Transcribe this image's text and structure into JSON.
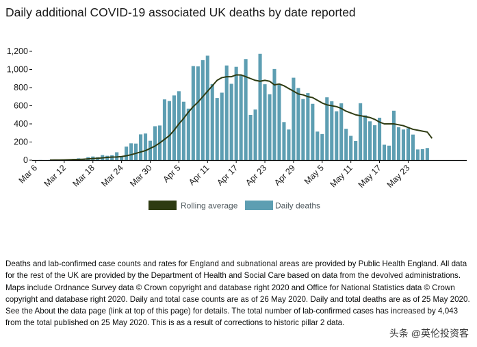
{
  "title": "Daily additional COVID-19 associated UK deaths by date reported",
  "footnote": "Deaths and lab-confirmed case counts and rates for England and subnational areas are provided by Public Health England. All data for the rest of the UK are provided by the Department of Health and Social Care based on data from the devolved administrations. Maps include Ordnance Survey data © Crown copyright and database right 2020 and Office for National Statistics data © Crown copyright and database right 2020. Daily and total case counts are as of 26 May 2020. Daily and total deaths are as of 25 May 2020. See the About the data page (link at top of this page) for details. The total number of lab-confirmed cases has increased by 4,043 from the total published on 25 May 2020. This is as a result of corrections to historic pillar 2 data.",
  "watermark": "头条 @英伦投资客",
  "colors": {
    "bar": "#5d9eb2",
    "line": "#2e3b12",
    "axis": "#0b0c0c",
    "grid": "#c8c8c8"
  },
  "chart_data": {
    "type": "bar",
    "x_start": "2020-03-06",
    "x_ticks": [
      "Mar 6",
      "Mar 12",
      "Mar 18",
      "Mar 24",
      "Mar 30",
      "Apr 5",
      "Apr 11",
      "Apr 17",
      "Apr 23",
      "Apr 29",
      "May 5",
      "May 11",
      "May 17",
      "May 23"
    ],
    "y_ticks": [
      "0",
      "200",
      "400",
      "600",
      "800",
      "1,000",
      "1,200"
    ],
    "ylim": [
      0,
      1200
    ],
    "legend": [
      "Rolling average",
      "Daily deaths"
    ],
    "legend_position": "bottom",
    "series": [
      {
        "name": "Daily deaths",
        "type": "bar",
        "values": [
          0,
          1,
          0,
          1,
          0,
          2,
          1,
          10,
          14,
          20,
          16,
          33,
          40,
          33,
          56,
          48,
          54,
          87,
          41,
          149,
          186,
          183,
          284,
          294,
          214,
          374,
          382,
          670,
          652,
          714,
          760,
          644,
          568,
          1038,
          1034,
          1103,
          1152,
          839,
          686,
          744,
          1044,
          842,
          1029,
          935,
          1115,
          498,
          559,
          1172,
          837,
          727,
          1005,
          843,
          420,
          338,
          909,
          795,
          674,
          739,
          621,
          315,
          288,
          693,
          649,
          539,
          627,
          346,
          268,
          211,
          628,
          494,
          428,
          385,
          468,
          170,
          160,
          545,
          363,
          338,
          351,
          282,
          118,
          121,
          134
        ]
      },
      {
        "name": "Rolling average",
        "type": "line",
        "x_offset": 3,
        "values": [
          1,
          2,
          2,
          3,
          5,
          7,
          8,
          10,
          14,
          18,
          21,
          25,
          30,
          34,
          35,
          40,
          48,
          60,
          75,
          90,
          105,
          130,
          155,
          190,
          230,
          270,
          330,
          400,
          460,
          530,
          590,
          640,
          700,
          760,
          820,
          880,
          910,
          920,
          920,
          940,
          940,
          920,
          900,
          880,
          870,
          880,
          870,
          830,
          840,
          820,
          790,
          760,
          730,
          720,
          700,
          690,
          660,
          630,
          610,
          600,
          590,
          570,
          540,
          520,
          500,
          490,
          480,
          470,
          450,
          420,
          400,
          400,
          400,
          390,
          380,
          360,
          340,
          330,
          320,
          310,
          240
        ]
      }
    ]
  }
}
